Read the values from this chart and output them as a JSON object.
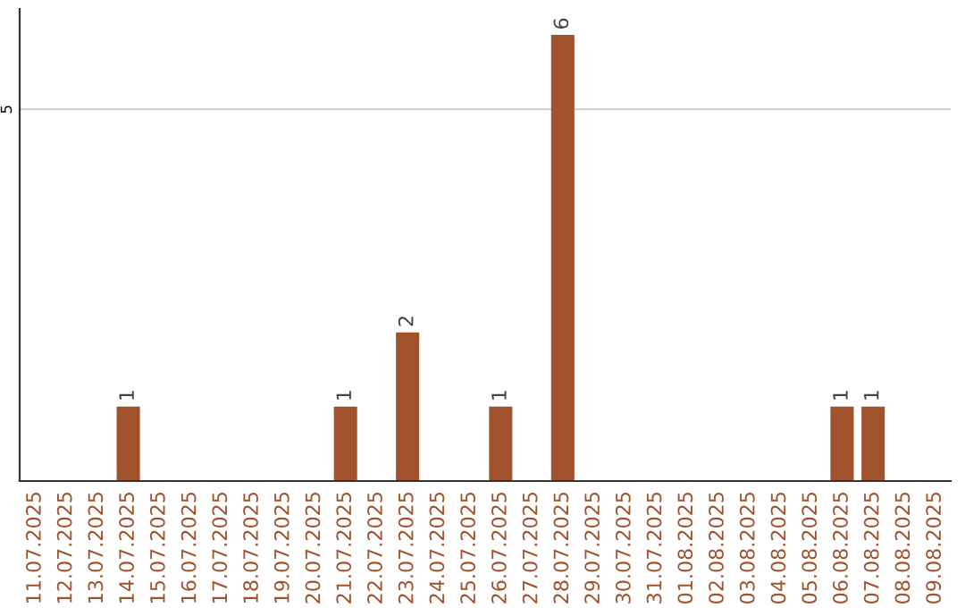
{
  "chart_data": {
    "type": "bar",
    "categories": [
      "11.07.2025",
      "12.07.2025",
      "13.07.2025",
      "14.07.2025",
      "15.07.2025",
      "16.07.2025",
      "17.07.2025",
      "18.07.2025",
      "19.07.2025",
      "20.07.2025",
      "21.07.2025",
      "22.07.2025",
      "23.07.2025",
      "24.07.2025",
      "25.07.2025",
      "26.07.2025",
      "27.07.2025",
      "28.07.2025",
      "29.07.2025",
      "30.07.2025",
      "31.07.2025",
      "01.08.2025",
      "02.08.2025",
      "03.08.2025",
      "04.08.2025",
      "05.08.2025",
      "06.08.2025",
      "07.08.2025",
      "08.08.2025",
      "09.08.2025"
    ],
    "values": [
      0,
      0,
      0,
      1,
      0,
      0,
      0,
      0,
      0,
      0,
      1,
      0,
      2,
      0,
      0,
      1,
      0,
      6,
      0,
      0,
      0,
      0,
      0,
      0,
      0,
      0,
      1,
      1,
      0,
      0
    ],
    "value_labels": [
      null,
      null,
      null,
      "1",
      null,
      null,
      null,
      null,
      null,
      null,
      "1",
      null,
      "2",
      null,
      null,
      "1",
      null,
      "6",
      null,
      null,
      null,
      null,
      null,
      null,
      null,
      null,
      "1",
      "1",
      null,
      null
    ],
    "color": "#a0522d",
    "ylim": [
      0,
      6.35
    ],
    "yticks": [
      5
    ],
    "grid": "y"
  }
}
